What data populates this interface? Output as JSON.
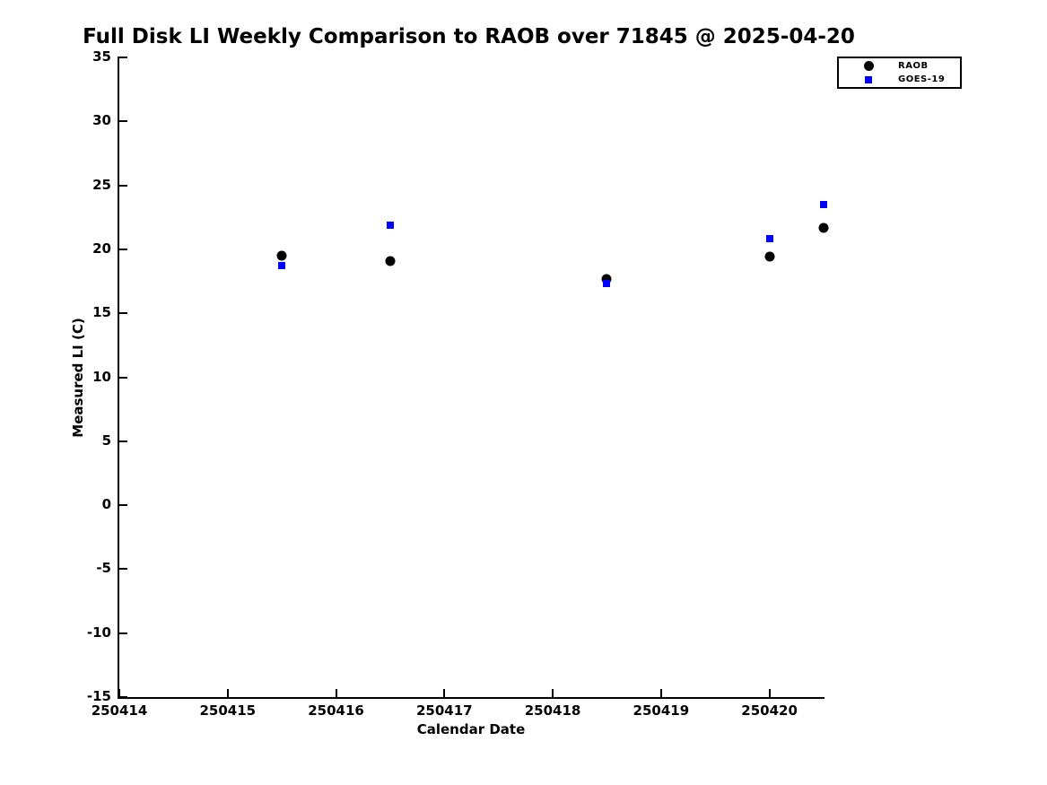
{
  "title": "Full Disk LI Weekly Comparison to RAOB over 71845 @ 2025-04-20",
  "colors": {
    "background": "#ffffff",
    "axis": "#000000",
    "raob": "#000000",
    "goes19": "#0000ff"
  },
  "chart_data": {
    "type": "scatter",
    "title": "Full Disk LI Weekly Comparison to RAOB over 71845 @ 2025-04-20",
    "xlabel": "Calendar Date",
    "ylabel": "Measured LI (C)",
    "xlim": [
      250414,
      250420.5
    ],
    "ylim": [
      -15,
      35
    ],
    "x_ticks": [
      250414,
      250415,
      250416,
      250417,
      250418,
      250419,
      250420
    ],
    "x_tick_labels": [
      "250414",
      "250415",
      "250416",
      "250417",
      "250418",
      "250419",
      "250420"
    ],
    "y_ticks": [
      35,
      30,
      25,
      20,
      15,
      10,
      5,
      0,
      -5,
      -10,
      -15
    ],
    "y_tick_labels": [
      "35",
      "30",
      "25",
      "20",
      "15",
      "10",
      "5",
      "0",
      "-5",
      "-10",
      "-15"
    ],
    "grid": false,
    "legend_position": "top-right-outside",
    "series": [
      {
        "name": "RAOB",
        "marker": "circle",
        "color": "#000000",
        "marker_size": 11,
        "points": [
          [
            250415.5,
            19.5
          ],
          [
            250416.5,
            19.1
          ],
          [
            250418.5,
            17.7
          ],
          [
            250420.0,
            19.4
          ],
          [
            250420.5,
            21.7
          ]
        ]
      },
      {
        "name": "GOES-19",
        "marker": "square",
        "color": "#0000ff",
        "marker_size": 8,
        "points": [
          [
            250415.5,
            18.7
          ],
          [
            250416.5,
            21.9
          ],
          [
            250418.5,
            17.3
          ],
          [
            250420.0,
            20.8
          ],
          [
            250420.5,
            23.5
          ]
        ]
      }
    ]
  }
}
